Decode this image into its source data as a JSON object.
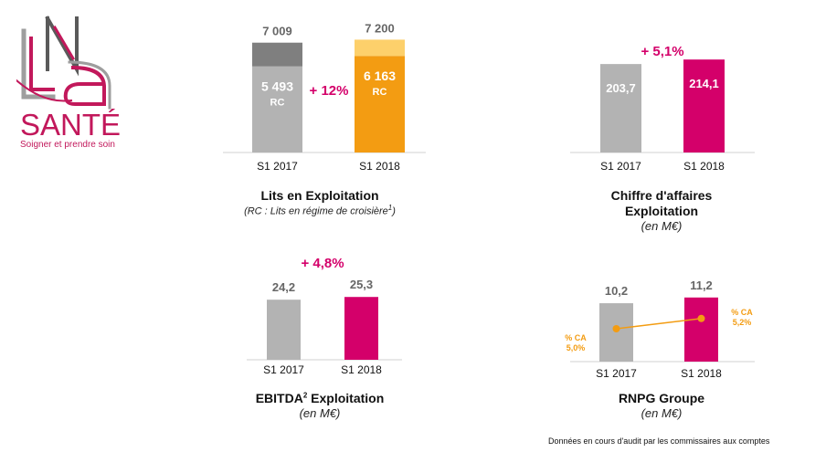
{
  "logo": {
    "brand": "SANTÉ",
    "tagline": "Soigner et prendre soin",
    "monogram": "LNA",
    "colors": {
      "magenta": "#c2185b",
      "grey": "#8c8c8c",
      "dark": "#5a5a5a"
    }
  },
  "footnote": "Données en cours d'audit par les commissaires aux comptes",
  "chart_data": [
    {
      "type": "bar",
      "id": "lits",
      "title": "Lits en Exploitation",
      "subtitle": "(RC : Lits en régime de croisière",
      "subtitle_sup": "1",
      "subtitle_end": ")",
      "categories": [
        "S1 2017",
        "S1 2018"
      ],
      "series": [
        {
          "values": [
            5493,
            6163
          ],
          "labels": [
            "5 493",
            "6 163"
          ],
          "sublabel": "RC",
          "colors": [
            "#b3b3b3",
            "#f39c12"
          ]
        },
        {
          "values": [
            1516,
            1037
          ],
          "colors": [
            "#7f7f7f",
            "#fdd06b"
          ]
        }
      ],
      "totals": [
        "7 009",
        "7 200"
      ],
      "growth": "+ 12%",
      "ylim": [
        0,
        7400
      ]
    },
    {
      "type": "bar",
      "id": "ca",
      "title": "Chiffre d'affaires",
      "title2": "Exploitation",
      "subtitle": "(en M€)",
      "categories": [
        "S1 2017",
        "S1 2018"
      ],
      "values": [
        203.7,
        214.1
      ],
      "labels": [
        "203,7",
        "214,1"
      ],
      "colors": [
        "#b3b3b3",
        "#d4006a"
      ],
      "growth": "+ 5,1%",
      "ylim": [
        0,
        225
      ]
    },
    {
      "type": "bar",
      "id": "ebitda",
      "title": "EBITDA",
      "title_sup": "2",
      "title_end": " Exploitation",
      "subtitle": "(en M€)",
      "categories": [
        "S1 2017",
        "S1 2018"
      ],
      "values": [
        24.2,
        25.3
      ],
      "labels": [
        "24,2",
        "25,3"
      ],
      "colors": [
        "#b3b3b3",
        "#d4006a"
      ],
      "growth": "+ 4,8%",
      "ylim": [
        0,
        32
      ]
    },
    {
      "type": "bar",
      "id": "rnpg",
      "title": "RNPG Groupe",
      "subtitle": "(en M€)",
      "categories": [
        "S1 2017",
        "S1 2018"
      ],
      "values": [
        10.2,
        11.2
      ],
      "labels": [
        "10,2",
        "11,2"
      ],
      "colors": [
        "#b3b3b3",
        "#d4006a"
      ],
      "ylim": [
        0,
        13.4
      ],
      "overlay": {
        "name": "% CA",
        "values": [
          5.0,
          5.2
        ],
        "labels": [
          "5,0%",
          "5,2%"
        ],
        "color": "#f39c12"
      }
    }
  ]
}
